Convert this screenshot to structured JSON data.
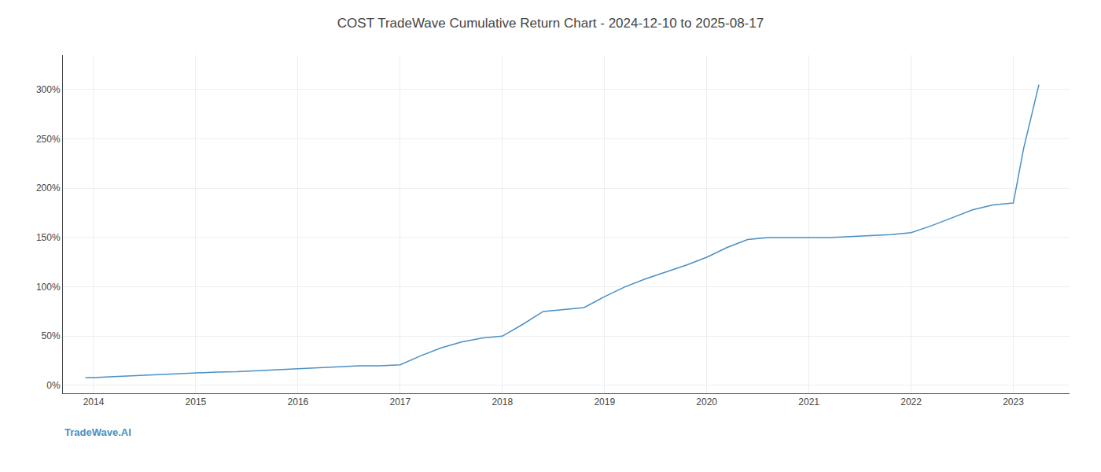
{
  "chart_data": {
    "type": "line",
    "title": "COST TradeWave Cumulative Return Chart - 2024-12-10 to 2025-08-17",
    "annotations": [
      "TradeWave.AI"
    ],
    "color": "#4a90c4",
    "x": [
      2013.92,
      2014.0,
      2014.2,
      2014.4,
      2014.6,
      2014.8,
      2015.0,
      2015.2,
      2015.4,
      2015.6,
      2015.8,
      2016.0,
      2016.2,
      2016.4,
      2016.6,
      2016.8,
      2017.0,
      2017.2,
      2017.4,
      2017.6,
      2017.8,
      2018.0,
      2018.2,
      2018.4,
      2018.6,
      2018.8,
      2019.0,
      2019.2,
      2019.4,
      2019.6,
      2019.8,
      2020.0,
      2020.2,
      2020.4,
      2020.6,
      2020.8,
      2021.0,
      2021.2,
      2021.4,
      2021.6,
      2021.8,
      2022.0,
      2022.2,
      2022.4,
      2022.6,
      2022.8,
      2023.0,
      2023.1,
      2023.25
    ],
    "values": [
      8,
      8,
      9,
      10,
      11,
      12,
      13,
      13.5,
      14,
      15,
      16,
      17,
      18,
      19,
      20,
      20,
      21,
      30,
      38,
      44,
      48,
      50,
      62,
      75,
      77,
      79,
      90,
      100,
      108,
      115,
      122,
      130,
      140,
      148,
      150,
      150,
      150,
      150,
      151,
      152,
      153,
      155,
      162,
      170,
      178,
      183,
      185,
      240,
      305
    ],
    "xlim": [
      2013.7,
      2023.55
    ],
    "xticks": [
      2014,
      2015,
      2016,
      2017,
      2018,
      2019,
      2020,
      2021,
      2022,
      2023
    ],
    "ylim": [
      -8,
      335
    ],
    "yticks": [
      {
        "value": 0,
        "label": "0%"
      },
      {
        "value": 50,
        "label": "50%"
      },
      {
        "value": 100,
        "label": "100%"
      },
      {
        "value": 150,
        "label": "150%"
      },
      {
        "value": 200,
        "label": "200%"
      },
      {
        "value": 250,
        "label": "250%"
      },
      {
        "value": 300,
        "label": "300%"
      }
    ],
    "grid": true
  }
}
